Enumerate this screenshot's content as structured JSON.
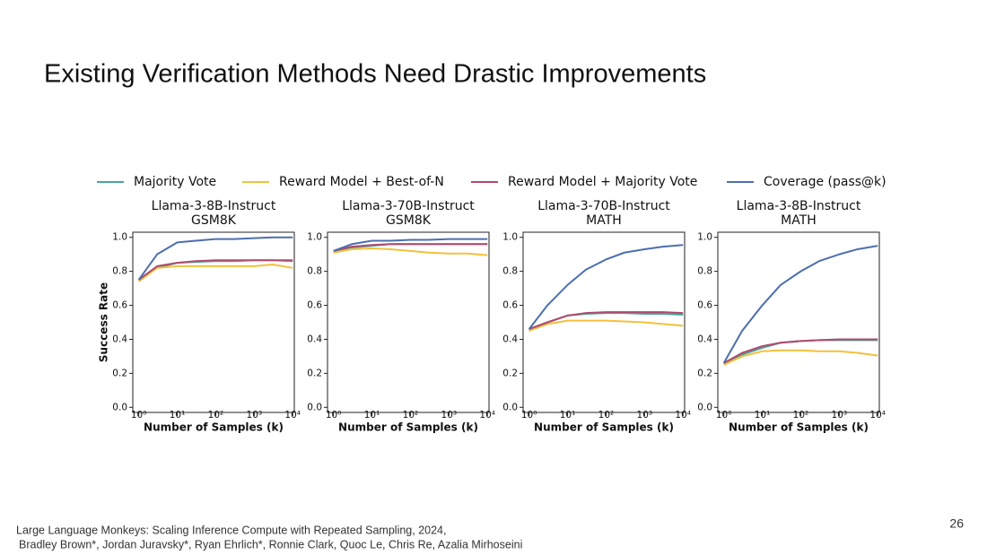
{
  "slide": {
    "title": "Existing Verification Methods Need Drastic Improvements",
    "citation": [
      "Large Language Monkeys: Scaling Inference Compute with Repeated Sampling, 2024,",
      "Bradley Brown*, Jordan Juravsky*, Ryan Ehrlich*, Ronnie Clark, Quoc Le, Chris Re, Azalia Mirhoseini"
    ],
    "page_number": 26
  },
  "chart_data": [
    {
      "type": "line",
      "title": "Llama-3-8B-Instruct",
      "subtitle": "GSM8K",
      "x_label": "Number of Samples (k)",
      "y_label": "Success Rate",
      "x": [
        1,
        3,
        10,
        30,
        100,
        300,
        1000,
        3000,
        10000
      ],
      "log_x": true,
      "xlim": [
        0.7,
        11000
      ],
      "ylim": [
        -0.03,
        1.03
      ],
      "xticks": [
        {
          "value": 1,
          "label": "10⁰"
        },
        {
          "value": 10,
          "label": "10¹"
        },
        {
          "value": 100,
          "label": "10²"
        },
        {
          "value": 1000,
          "label": "10³"
        },
        {
          "value": 10000,
          "label": "10⁴"
        }
      ],
      "yticks": [
        {
          "value": 0,
          "label": "0.0"
        },
        0.2,
        0.4,
        0.6,
        0.8,
        {
          "value": 1,
          "label": "1.0"
        }
      ],
      "series": [
        {
          "name": "Majority Vote",
          "color": "#4aa59a",
          "values": [
            0.75,
            0.82,
            0.85,
            0.855,
            0.86,
            0.86,
            0.865,
            0.865,
            0.86
          ]
        },
        {
          "name": "Reward Model + Best-of-N",
          "color": "#f2c13c",
          "values": [
            0.74,
            0.82,
            0.83,
            0.83,
            0.83,
            0.83,
            0.83,
            0.84,
            0.82
          ]
        },
        {
          "name": "Reward Model + Majority Vote",
          "color": "#b04a6e",
          "values": [
            0.75,
            0.83,
            0.85,
            0.86,
            0.865,
            0.865,
            0.865,
            0.865,
            0.865
          ]
        },
        {
          "name": "Coverage (pass@k)",
          "color": "#4c6fae",
          "values": [
            0.75,
            0.9,
            0.97,
            0.98,
            0.99,
            0.99,
            0.995,
            1.0,
            1.0
          ]
        }
      ]
    },
    {
      "type": "line",
      "title": "Llama-3-70B-Instruct",
      "subtitle": "GSM8K",
      "x_label": "Number of Samples (k)",
      "x": [
        1,
        3,
        10,
        30,
        100,
        300,
        1000,
        3000,
        10000
      ],
      "log_x": true,
      "xlim": [
        0.7,
        11000
      ],
      "ylim": [
        -0.03,
        1.03
      ],
      "xticks": [
        {
          "value": 1,
          "label": "10⁰"
        },
        {
          "value": 10,
          "label": "10¹"
        },
        {
          "value": 100,
          "label": "10²"
        },
        {
          "value": 1000,
          "label": "10³"
        },
        {
          "value": 10000,
          "label": "10⁴"
        }
      ],
      "yticks": [
        {
          "value": 0,
          "label": "0.0"
        },
        0.2,
        0.4,
        0.6,
        0.8,
        {
          "value": 1,
          "label": "1.0"
        }
      ],
      "series": [
        {
          "color": "#4aa59a",
          "values": [
            0.92,
            0.94,
            0.95,
            0.96,
            0.96,
            0.96,
            0.96,
            0.96,
            0.96
          ]
        },
        {
          "color": "#f2c13c",
          "values": [
            0.91,
            0.93,
            0.935,
            0.93,
            0.92,
            0.91,
            0.905,
            0.905,
            0.895
          ]
        },
        {
          "color": "#b04a6e",
          "values": [
            0.92,
            0.945,
            0.955,
            0.96,
            0.96,
            0.96,
            0.96,
            0.96,
            0.96
          ]
        },
        {
          "color": "#4c6fae",
          "values": [
            0.92,
            0.96,
            0.98,
            0.98,
            0.985,
            0.985,
            0.99,
            0.99,
            0.99
          ]
        }
      ]
    },
    {
      "type": "line",
      "title": "Llama-3-70B-Instruct",
      "subtitle": "MATH",
      "x_label": "Number of Samples (k)",
      "x": [
        1,
        3,
        10,
        30,
        100,
        300,
        1000,
        3000,
        10000
      ],
      "log_x": true,
      "xlim": [
        0.7,
        11000
      ],
      "ylim": [
        -0.03,
        1.03
      ],
      "xticks": [
        {
          "value": 1,
          "label": "10⁰"
        },
        {
          "value": 10,
          "label": "10¹"
        },
        {
          "value": 100,
          "label": "10²"
        },
        {
          "value": 1000,
          "label": "10³"
        },
        {
          "value": 10000,
          "label": "10⁴"
        }
      ],
      "yticks": [
        {
          "value": 0,
          "label": "0.0"
        },
        0.2,
        0.4,
        0.6,
        0.8,
        {
          "value": 1,
          "label": "1.0"
        }
      ],
      "series": [
        {
          "color": "#4aa59a",
          "values": [
            0.46,
            0.5,
            0.54,
            0.55,
            0.555,
            0.555,
            0.55,
            0.55,
            0.545
          ]
        },
        {
          "color": "#f2c13c",
          "values": [
            0.45,
            0.49,
            0.51,
            0.51,
            0.51,
            0.505,
            0.5,
            0.49,
            0.48
          ]
        },
        {
          "color": "#b04a6e",
          "values": [
            0.46,
            0.5,
            0.54,
            0.555,
            0.56,
            0.56,
            0.56,
            0.56,
            0.555
          ]
        },
        {
          "color": "#4c6fae",
          "values": [
            0.46,
            0.6,
            0.72,
            0.81,
            0.87,
            0.91,
            0.93,
            0.945,
            0.955
          ]
        }
      ]
    },
    {
      "type": "line",
      "title": "Llama-3-8B-Instruct",
      "subtitle": "MATH",
      "x_label": "Number of Samples (k)",
      "x": [
        1,
        3,
        10,
        30,
        100,
        300,
        1000,
        3000,
        10000
      ],
      "log_x": true,
      "xlim": [
        0.7,
        11000
      ],
      "ylim": [
        -0.03,
        1.03
      ],
      "xticks": [
        {
          "value": 1,
          "label": "10⁰"
        },
        {
          "value": 10,
          "label": "10¹"
        },
        {
          "value": 100,
          "label": "10²"
        },
        {
          "value": 1000,
          "label": "10³"
        },
        {
          "value": 10000,
          "label": "10⁴"
        }
      ],
      "yticks": [
        {
          "value": 0,
          "label": "0.0"
        },
        0.2,
        0.4,
        0.6,
        0.8,
        {
          "value": 1,
          "label": "1.0"
        }
      ],
      "series": [
        {
          "color": "#4aa59a",
          "values": [
            0.26,
            0.31,
            0.35,
            0.38,
            0.39,
            0.395,
            0.395,
            0.395,
            0.395
          ]
        },
        {
          "color": "#f2c13c",
          "values": [
            0.25,
            0.3,
            0.33,
            0.335,
            0.335,
            0.33,
            0.33,
            0.32,
            0.305
          ]
        },
        {
          "color": "#b04a6e",
          "values": [
            0.26,
            0.32,
            0.36,
            0.38,
            0.39,
            0.395,
            0.4,
            0.4,
            0.4
          ]
        },
        {
          "color": "#4c6fae",
          "values": [
            0.26,
            0.45,
            0.6,
            0.72,
            0.8,
            0.86,
            0.9,
            0.93,
            0.95
          ]
        }
      ]
    }
  ]
}
